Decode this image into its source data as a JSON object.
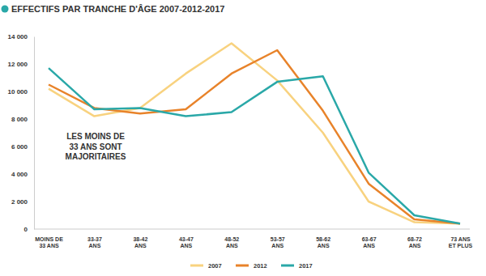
{
  "chart_data": {
    "type": "line",
    "title": "EFFECTIFS PAR TRANCHE D'ÂGE 2007-2012-2017",
    "annotation": "LES MOINS DE\n33 ANS SONT\nMAJORITAIRES",
    "categories": [
      "MOINS DE\n33 ANS",
      "33-37\nANS",
      "38-42\nANS",
      "43-47\nANS",
      "48-52\nANS",
      "53-57\nANS",
      "58-62\nANS",
      "63-67\nANS",
      "68-72\nANS",
      "73 ANS\nET PLUS"
    ],
    "series": [
      {
        "name": "2007",
        "color": "#f8d27f",
        "values": [
          10200,
          8200,
          8800,
          11300,
          13500,
          10800,
          7000,
          2000,
          500,
          400
        ]
      },
      {
        "name": "2012",
        "color": "#e8832a",
        "values": [
          10500,
          8800,
          8400,
          8700,
          11300,
          13000,
          8600,
          3300,
          700,
          400
        ]
      },
      {
        "name": "2017",
        "color": "#2aa8a8",
        "values": [
          11700,
          8700,
          8800,
          8200,
          8500,
          10700,
          11100,
          4100,
          1000,
          400
        ]
      }
    ],
    "ylim": [
      0,
      14000
    ],
    "yticks": [
      0,
      {
        "value": 2000,
        "label": "2 000"
      },
      {
        "value": 4000,
        "label": "4 000"
      },
      {
        "value": 6000,
        "label": "6 000"
      },
      {
        "value": 8000,
        "label": "8 000"
      },
      {
        "value": 10000,
        "label": "10 000"
      },
      {
        "value": 12000,
        "label": "12 000"
      },
      {
        "value": 14000,
        "label": "14 000"
      }
    ],
    "grid": false,
    "legend": "bottom"
  }
}
